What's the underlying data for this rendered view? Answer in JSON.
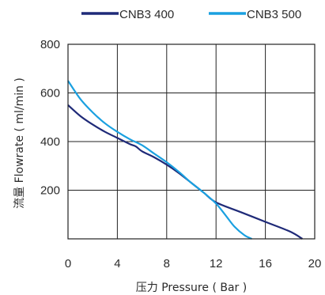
{
  "chart_data": {
    "type": "line",
    "xlabel": "压力 Pressure ( Bar )",
    "ylabel": "流量 Flowrate ( ml/min )",
    "xlim": [
      0,
      20
    ],
    "ylim": [
      0,
      800
    ],
    "x_ticks": [
      "0",
      "4",
      "8",
      "12",
      "16",
      "20"
    ],
    "y_ticks": [
      "200",
      "400",
      "600",
      "800"
    ],
    "grid": true,
    "legend_position": "top",
    "series": [
      {
        "name": "CNB3 400",
        "color": "#1f2a78",
        "x": [
          0,
          1,
          2,
          3,
          4,
          5,
          5.5,
          6,
          7,
          8,
          9,
          10,
          11,
          12,
          14,
          16,
          18,
          19
        ],
        "y": [
          550,
          505,
          470,
          440,
          415,
          390,
          380,
          360,
          335,
          305,
          270,
          230,
          190,
          150,
          110,
          70,
          30,
          0
        ]
      },
      {
        "name": "CNB3 500",
        "color": "#1aa0e0",
        "x": [
          0,
          1,
          2,
          3,
          4,
          5,
          6,
          7,
          8,
          9,
          10,
          11,
          12,
          12.8,
          13.5,
          14.3,
          14.9
        ],
        "y": [
          650,
          575,
          520,
          475,
          440,
          410,
          385,
          350,
          315,
          275,
          230,
          190,
          145,
          95,
          50,
          15,
          0
        ]
      }
    ]
  }
}
